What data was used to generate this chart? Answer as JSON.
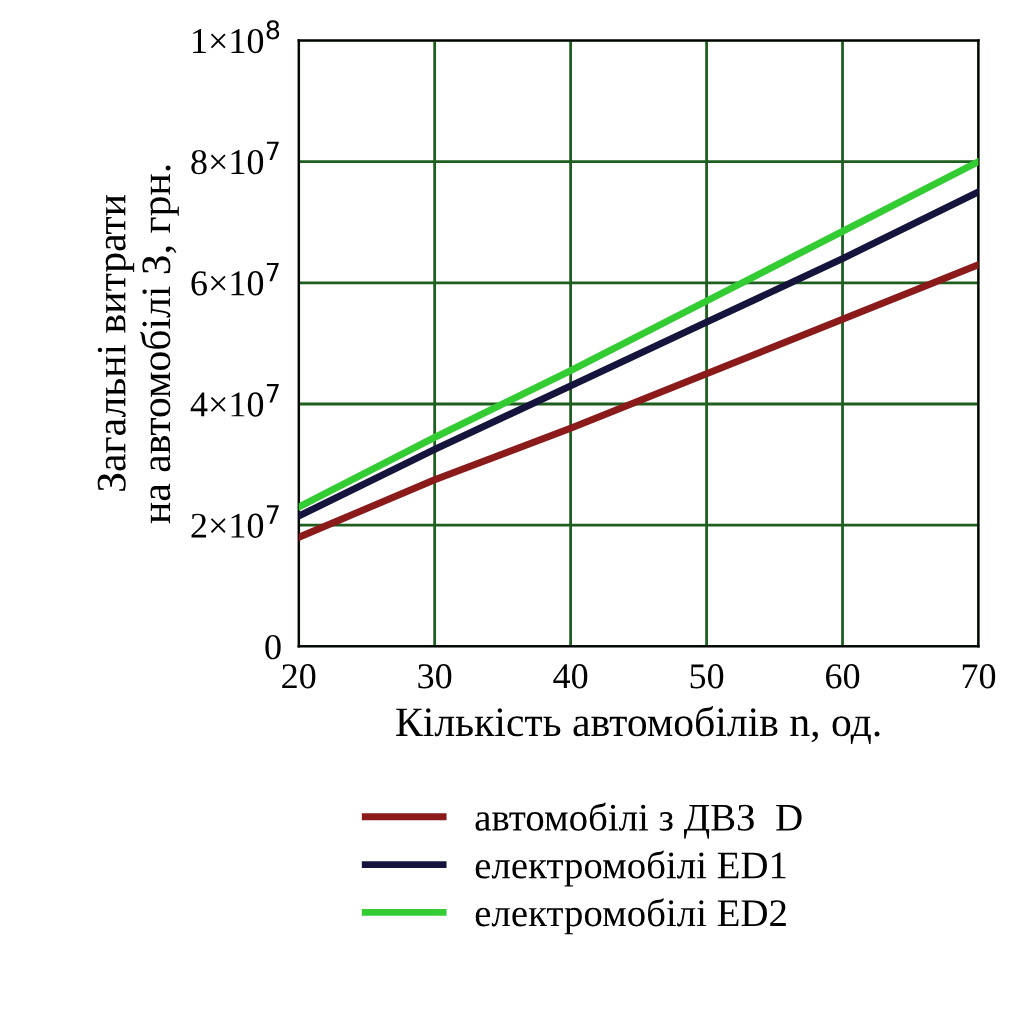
{
  "chart_data": {
    "type": "line",
    "xlabel": "Кількість автомобілів n, од.",
    "ylabel": "Загальні витрати\nна автомобілі З, грн.",
    "x": [
      20,
      30,
      40,
      50,
      60,
      70
    ],
    "series": [
      {
        "name": "автомобілі з ДВЗ  D",
        "color": "#8b1a1a",
        "values": [
          18000000,
          27500000,
          36000000,
          45000000,
          54000000,
          63000000
        ]
      },
      {
        "name": "електромобілі ED1",
        "color": "#14143c",
        "values": [
          21500000,
          32500000,
          43000000,
          53500000,
          64000000,
          75000000
        ]
      },
      {
        "name": "електромобілі ED2",
        "color": "#33cc33",
        "values": [
          23000000,
          34500000,
          45500000,
          57000000,
          68500000,
          80000000
        ]
      }
    ],
    "xlim": [
      20,
      70
    ],
    "xticks": [
      20,
      30,
      40,
      50,
      60,
      70
    ],
    "ylim": [
      0,
      100000000
    ],
    "yticks": [
      {
        "value": 0,
        "label": "0"
      },
      {
        "value": 20000000,
        "label": "2×10$^{7}$"
      },
      {
        "value": 40000000,
        "label": "4×10$^{7}$"
      },
      {
        "value": 60000000,
        "label": "6×10$^{7}$"
      },
      {
        "value": 80000000,
        "label": "8×10$^{7}$"
      },
      {
        "value": 100000000,
        "label": "1×10$^{8}$"
      }
    ],
    "grid": true,
    "legend": "bottom",
    "marker": "none",
    "line_style": "solid"
  }
}
